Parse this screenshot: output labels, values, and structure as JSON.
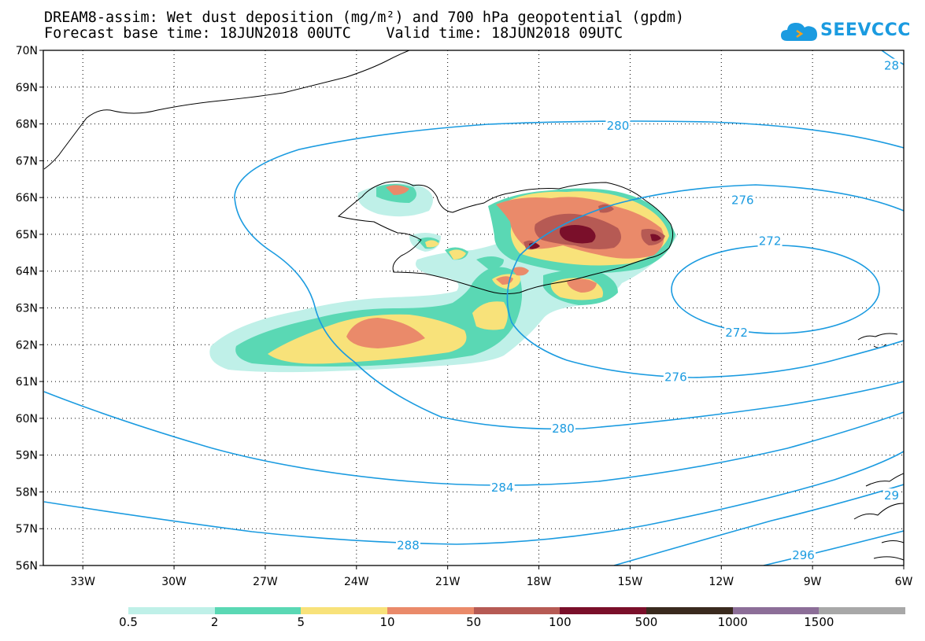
{
  "title": {
    "line1": "DREAM8-assim: Wet dust deposition (mg/m²) and 700 hPa geopotential (gpdm)",
    "line2": "Forecast base time: 18JUN2018 00UTC    Valid time: 18JUN2018 09UTC"
  },
  "logo": {
    "text": "SEEVCCC",
    "icon": "cloud-icon",
    "color": "#1b9be0"
  },
  "map": {
    "lat_range": [
      56,
      70
    ],
    "lon_range": [
      -34.3,
      -6
    ],
    "lat_labels": [
      "70N",
      "69N",
      "68N",
      "67N",
      "66N",
      "65N",
      "64N",
      "63N",
      "62N",
      "61N",
      "60N",
      "59N",
      "58N",
      "57N",
      "56N"
    ],
    "lon_labels": [
      "33W",
      "30W",
      "27W",
      "24W",
      "21W",
      "18W",
      "15W",
      "12W",
      "9W",
      "6W"
    ],
    "grid": "dotted",
    "contour_color": "#1b9be0",
    "contour_labels": [
      {
        "text": "280",
        "lon": -15.4,
        "lat": 67.95
      },
      {
        "text": "276",
        "lon": -11.3,
        "lat": 65.93
      },
      {
        "text": "272",
        "lon": -10.4,
        "lat": 64.82
      },
      {
        "text": "272",
        "lon": -11.5,
        "lat": 62.33
      },
      {
        "text": "276",
        "lon": -13.5,
        "lat": 61.12
      },
      {
        "text": "280",
        "lon": -17.2,
        "lat": 59.72
      },
      {
        "text": "284",
        "lon": -19.2,
        "lat": 58.12
      },
      {
        "text": "288",
        "lon": -22.3,
        "lat": 56.55
      },
      {
        "text": "296",
        "lon": -9.3,
        "lat": 56.28
      },
      {
        "text": "28",
        "lon": -6.4,
        "lat": 69.58
      },
      {
        "text": "29",
        "lon": -6.4,
        "lat": 57.9
      }
    ]
  },
  "legend": {
    "labels": [
      "0.5",
      "2",
      "5",
      "10",
      "50",
      "100",
      "500",
      "1000",
      "1500"
    ],
    "colors": [
      "#bff0e8",
      "#5ad8b4",
      "#f8e27a",
      "#ea8a6a",
      "#b65a54",
      "#7a0f2a",
      "#3a2a1e",
      "#8c6e98",
      "#a8a8a8"
    ]
  }
}
